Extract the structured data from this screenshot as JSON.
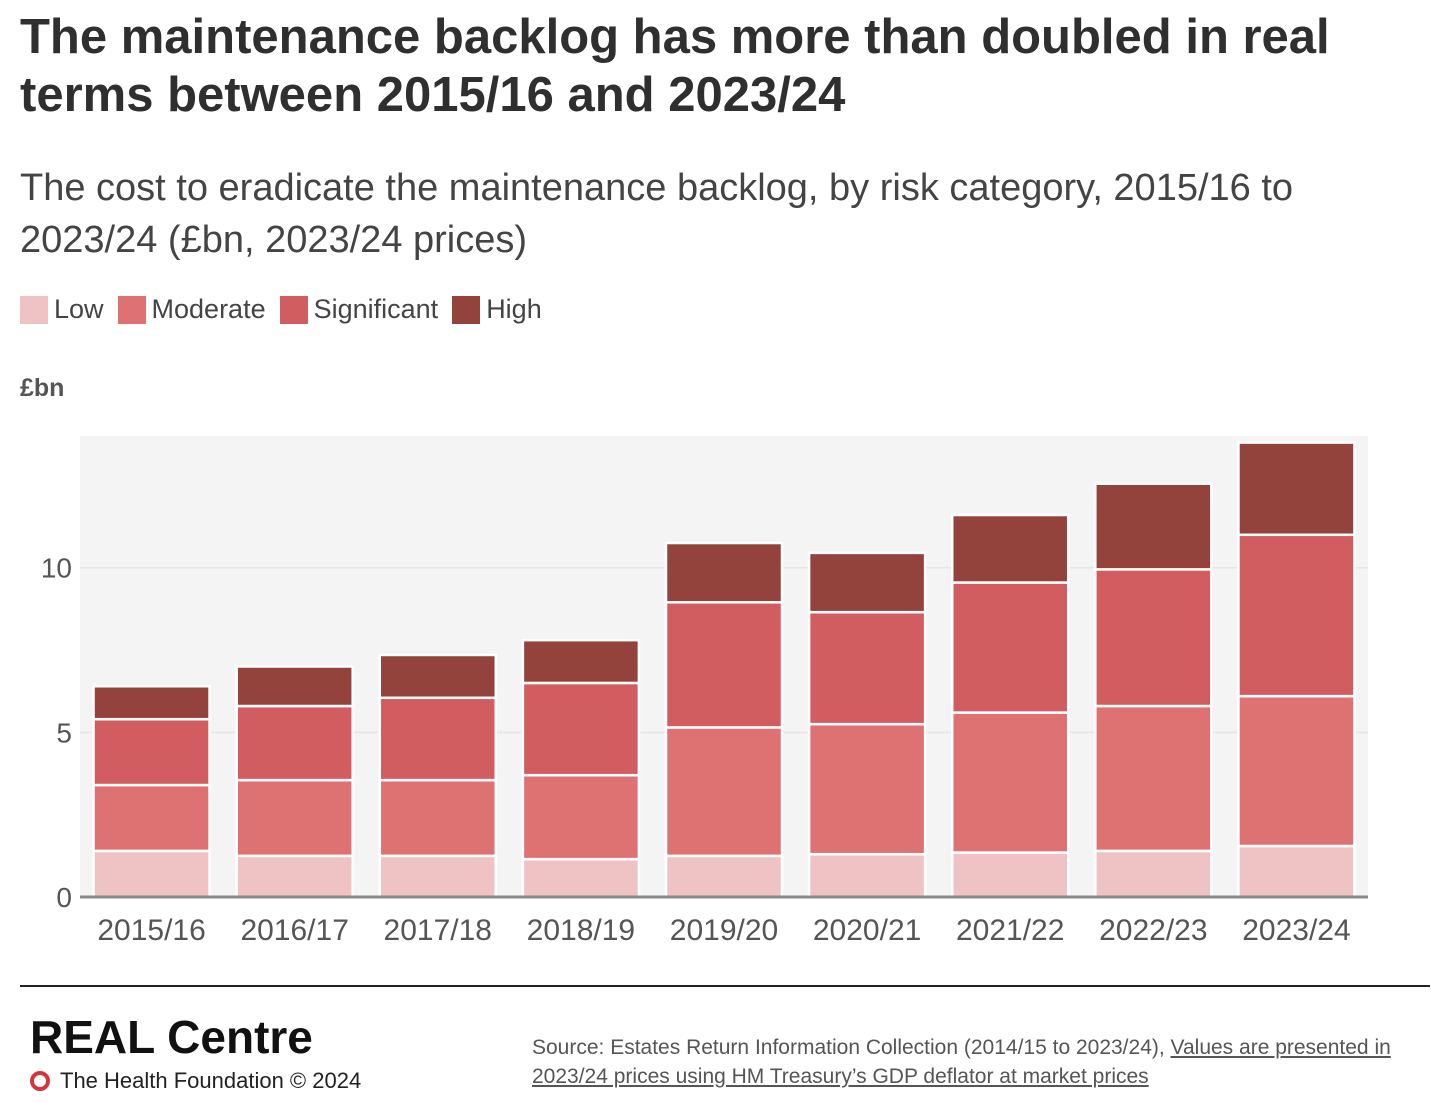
{
  "header": {
    "title": "The maintenance backlog has more than doubled in real terms between 2015/16 and 2023/24",
    "subtitle": "The cost to eradicate the maintenance backlog, by risk category, 2015/16 to 2023/24 (£bn, 2023/24 prices)"
  },
  "legend": {
    "items": [
      {
        "label": "Low",
        "color": "#efc3c3"
      },
      {
        "label": "Moderate",
        "color": "#de7272"
      },
      {
        "label": "Significant",
        "color": "#d25d61"
      },
      {
        "label": "High",
        "color": "#93433b"
      }
    ]
  },
  "chart_data": {
    "type": "bar",
    "stacked": true,
    "title": "The maintenance backlog has more than doubled in real terms between 2015/16 and 2023/24",
    "ylabel": "£bn",
    "xlabel": "",
    "ylim": [
      0,
      14
    ],
    "yticks": [
      0,
      5,
      10
    ],
    "grid": true,
    "categories": [
      "2015/16",
      "2016/17",
      "2017/18",
      "2018/19",
      "2019/20",
      "2020/21",
      "2021/22",
      "2022/23",
      "2023/24"
    ],
    "series": [
      {
        "name": "Low",
        "color": "#efc3c3",
        "values": [
          1.4,
          1.25,
          1.25,
          1.15,
          1.25,
          1.3,
          1.35,
          1.4,
          1.55
        ]
      },
      {
        "name": "Moderate",
        "color": "#de7272",
        "values": [
          2.0,
          2.3,
          2.3,
          2.55,
          3.9,
          3.95,
          4.25,
          4.4,
          4.55
        ]
      },
      {
        "name": "Significant",
        "color": "#d25d61",
        "values": [
          2.0,
          2.25,
          2.5,
          2.8,
          3.8,
          3.4,
          3.95,
          4.15,
          4.9
        ]
      },
      {
        "name": "High",
        "color": "#93433b",
        "values": [
          1.0,
          1.2,
          1.3,
          1.3,
          1.8,
          1.8,
          2.05,
          2.6,
          2.8
        ]
      }
    ]
  },
  "footer": {
    "brand": "REAL Centre",
    "org": "The Health Foundation © 2024",
    "source_prefix": "Source: Estates Return Information Collection (2014/15 to 2023/24), ",
    "source_link": "Values are presented in 2023/24 prices using HM Treasury’s GDP deflator at market prices"
  }
}
